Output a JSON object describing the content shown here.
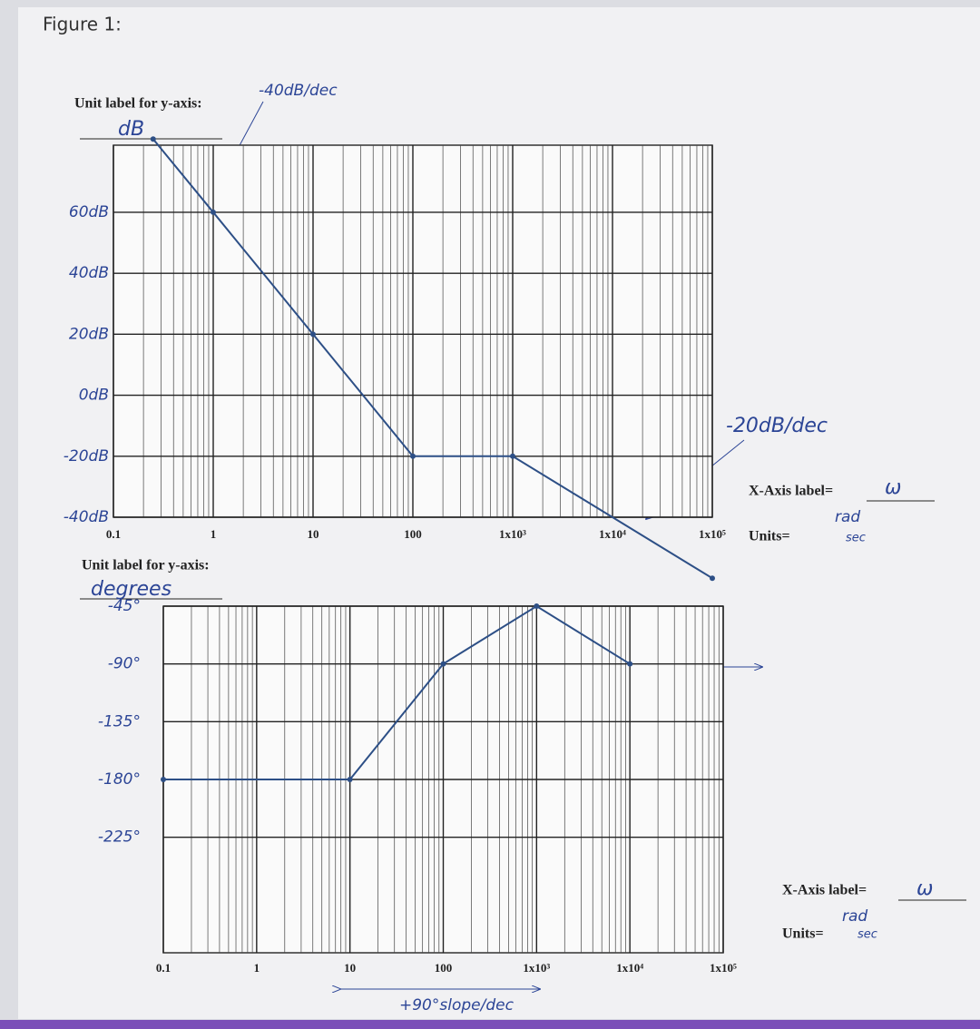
{
  "figure_label": "Figure 1:",
  "chart_data": [
    {
      "type": "line",
      "y_unit_prompt": "Unit label for y-axis:",
      "y_unit": "dB",
      "annotations": [
        "-40dB/dec",
        "-20dB/dec"
      ],
      "x_axis_prompt": "X-Axis label=",
      "x_axis_label": "ω",
      "units_prompt": "Units=",
      "units_num": "rad",
      "units_den": "sec",
      "log_x": true,
      "xlim": [
        0.1,
        100000
      ],
      "xticks": [
        0.1,
        1,
        10,
        100,
        {
          "value": 1000,
          "label": "1x10³"
        },
        {
          "value": 10000,
          "label": "1x10⁴"
        },
        {
          "value": 100000,
          "label": "1x10⁵"
        }
      ],
      "ylim": [
        -40,
        82
      ],
      "yticks": [
        {
          "value": 60,
          "label": "60dB"
        },
        {
          "value": 40,
          "label": "40dB"
        },
        {
          "value": 20,
          "label": "20dB"
        },
        {
          "value": 0,
          "label": "0dB"
        },
        {
          "value": -20,
          "label": "-20dB"
        },
        {
          "value": -40,
          "label": "-40dB"
        }
      ],
      "grid": true,
      "color": "#2d4f86",
      "x": [
        0.25,
        1,
        10,
        100,
        1000,
        100000
      ],
      "values": [
        84,
        60,
        20,
        -20,
        -20,
        -60
      ]
    },
    {
      "type": "line",
      "y_unit_prompt": "Unit label for y-axis:",
      "y_unit": "degrees",
      "annotations": [
        "+90°slope/dec"
      ],
      "x_axis_prompt": "X-Axis label=",
      "x_axis_label": "ω",
      "units_prompt": "Units=",
      "units_num": "rad",
      "units_den": "sec",
      "log_x": true,
      "xlim": [
        0.1,
        100000
      ],
      "xticks": [
        0.1,
        1,
        10,
        100,
        {
          "value": 1000,
          "label": "1x10³"
        },
        {
          "value": 10000,
          "label": "1x10⁴"
        },
        {
          "value": 100000,
          "label": "1x10⁵"
        }
      ],
      "ylim": [
        -315,
        -45
      ],
      "yticks": [
        {
          "value": -45,
          "label": "-45°"
        },
        {
          "value": -90,
          "label": "-90°"
        },
        {
          "value": -135,
          "label": "-135°"
        },
        {
          "value": -180,
          "label": "-180°"
        },
        {
          "value": -225,
          "label": "-225°"
        }
      ],
      "grid": true,
      "color": "#2d4f86",
      "x": [
        0.1,
        10,
        100,
        1000,
        10000
      ],
      "values": [
        -180,
        -180,
        -90,
        -45,
        -90
      ]
    }
  ]
}
